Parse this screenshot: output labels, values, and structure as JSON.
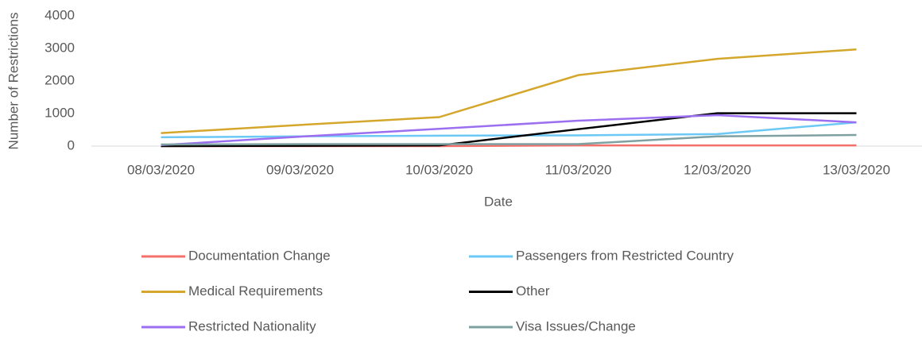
{
  "chart_data": {
    "type": "line",
    "categories": [
      "08/03/2020",
      "09/03/2020",
      "10/03/2020",
      "11/03/2020",
      "12/03/2020",
      "13/03/2020"
    ],
    "series": [
      {
        "name": "Documentation Change",
        "color": "#f4716b",
        "values": [
          0,
          0,
          0,
          20,
          20,
          20
        ]
      },
      {
        "name": "Passengers from Restricted Country",
        "color": "#6cc8f4",
        "values": [
          270,
          300,
          320,
          330,
          370,
          730
        ]
      },
      {
        "name": "Medical Requirements",
        "color": "#d4a72c",
        "values": [
          400,
          650,
          890,
          2180,
          2680,
          2970
        ]
      },
      {
        "name": "Other",
        "color": "#000000",
        "values": [
          0,
          10,
          20,
          520,
          1010,
          1010
        ]
      },
      {
        "name": "Restricted Nationality",
        "color": "#9b6ff0",
        "values": [
          30,
          290,
          530,
          780,
          950,
          730
        ]
      },
      {
        "name": "Visa Issues/Change",
        "color": "#7fa0a0",
        "values": [
          50,
          60,
          60,
          60,
          300,
          340
        ]
      }
    ],
    "xlabel": "Date",
    "ylabel": "Number of Restrictions",
    "ylim": [
      0,
      4000
    ],
    "yticks": [
      0,
      1000,
      2000,
      3000,
      4000
    ],
    "grid": false
  }
}
